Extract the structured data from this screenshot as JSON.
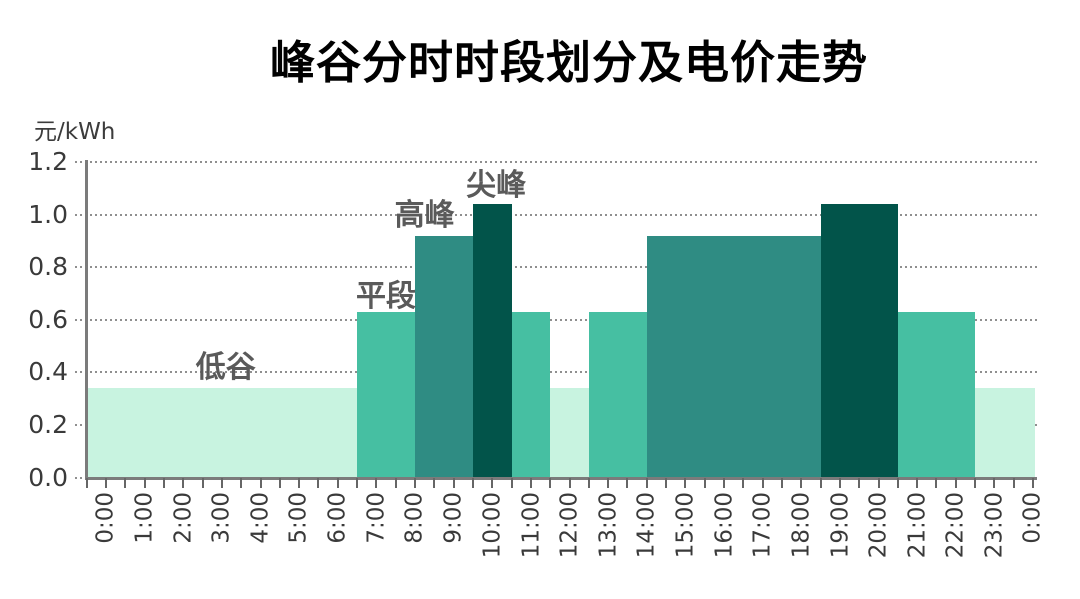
{
  "page": {
    "background": "#ffffff"
  },
  "header": {
    "title": "峰谷分时时段划分及电价走势"
  },
  "chart_data": {
    "type": "bar",
    "subtype": "time-of-use electricity price steps",
    "title": "峰谷分时时段划分及电价走势",
    "ylabel": "元/kWh",
    "xlabel": "",
    "ylim": [
      0,
      1.2
    ],
    "y_ticks": [
      0.0,
      0.2,
      0.4,
      0.6,
      0.8,
      1.0,
      1.2
    ],
    "y_tick_labels": [
      "0.0",
      "0.2",
      "0.4",
      "0.6",
      "0.8",
      "1.0",
      "1.2"
    ],
    "x_tick_labels": [
      "0:00",
      "1:00",
      "2:00",
      "3:00",
      "4:00",
      "5:00",
      "6:00",
      "7:00",
      "8:00",
      "9:00",
      "10:00",
      "11:00",
      "12:00",
      "13:00",
      "14:00",
      "15:00",
      "16:00",
      "17:00",
      "18:00",
      "19:00",
      "20:00",
      "21:00",
      "22:00",
      "23:00",
      "0:00"
    ],
    "x_minor_tick_interval_hours": 0.5,
    "grid": "horizontal dotted lines at each 0.2 step",
    "legend": "none",
    "levels": [
      {
        "name": "低谷",
        "slug": "valley",
        "price_yuan_per_kwh": 0.34,
        "color": "#c8f3e0"
      },
      {
        "name": "平段",
        "slug": "flat",
        "price_yuan_per_kwh": 0.63,
        "color": "#46bfa2"
      },
      {
        "name": "高峰",
        "slug": "peak",
        "price_yuan_per_kwh": 0.92,
        "color": "#2f8c83"
      },
      {
        "name": "尖峰",
        "slug": "sharp-peak",
        "price_yuan_per_kwh": 1.04,
        "color": "#02544a"
      }
    ],
    "background_band": {
      "level": "低谷",
      "start_hour": -0.48,
      "end_hour": 24.06
    },
    "segments": [
      {
        "level": "平段",
        "start_hour": 6.5,
        "end_hour": 8
      },
      {
        "level": "高峰",
        "start_hour": 8,
        "end_hour": 9.5
      },
      {
        "level": "尖峰",
        "start_hour": 9.5,
        "end_hour": 10.5
      },
      {
        "level": "平段",
        "start_hour": 10.5,
        "end_hour": 11.5
      },
      {
        "level": "平段",
        "start_hour": 12.5,
        "end_hour": 14
      },
      {
        "level": "高峰",
        "start_hour": 14,
        "end_hour": 18.5
      },
      {
        "level": "尖峰",
        "start_hour": 18.5,
        "end_hour": 20.5
      },
      {
        "level": "平段",
        "start_hour": 20.5,
        "end_hour": 22.5
      }
    ],
    "annotations": [
      {
        "text": "低谷",
        "hour": 3.1,
        "value": 0.43
      },
      {
        "text": "平段",
        "hour": 7.25,
        "value": 0.7
      },
      {
        "text": "高峰",
        "hour": 8.25,
        "value": 1.01
      },
      {
        "text": "尖峰",
        "hour": 10.1,
        "value": 1.125
      }
    ],
    "colors": {
      "grid": "#8f8f8f",
      "axis": "#7b7b7b",
      "tick_label": "#3a3a3a",
      "annotation_label": "#5a5a5a",
      "title": "#000000",
      "background": "#ffffff"
    }
  }
}
